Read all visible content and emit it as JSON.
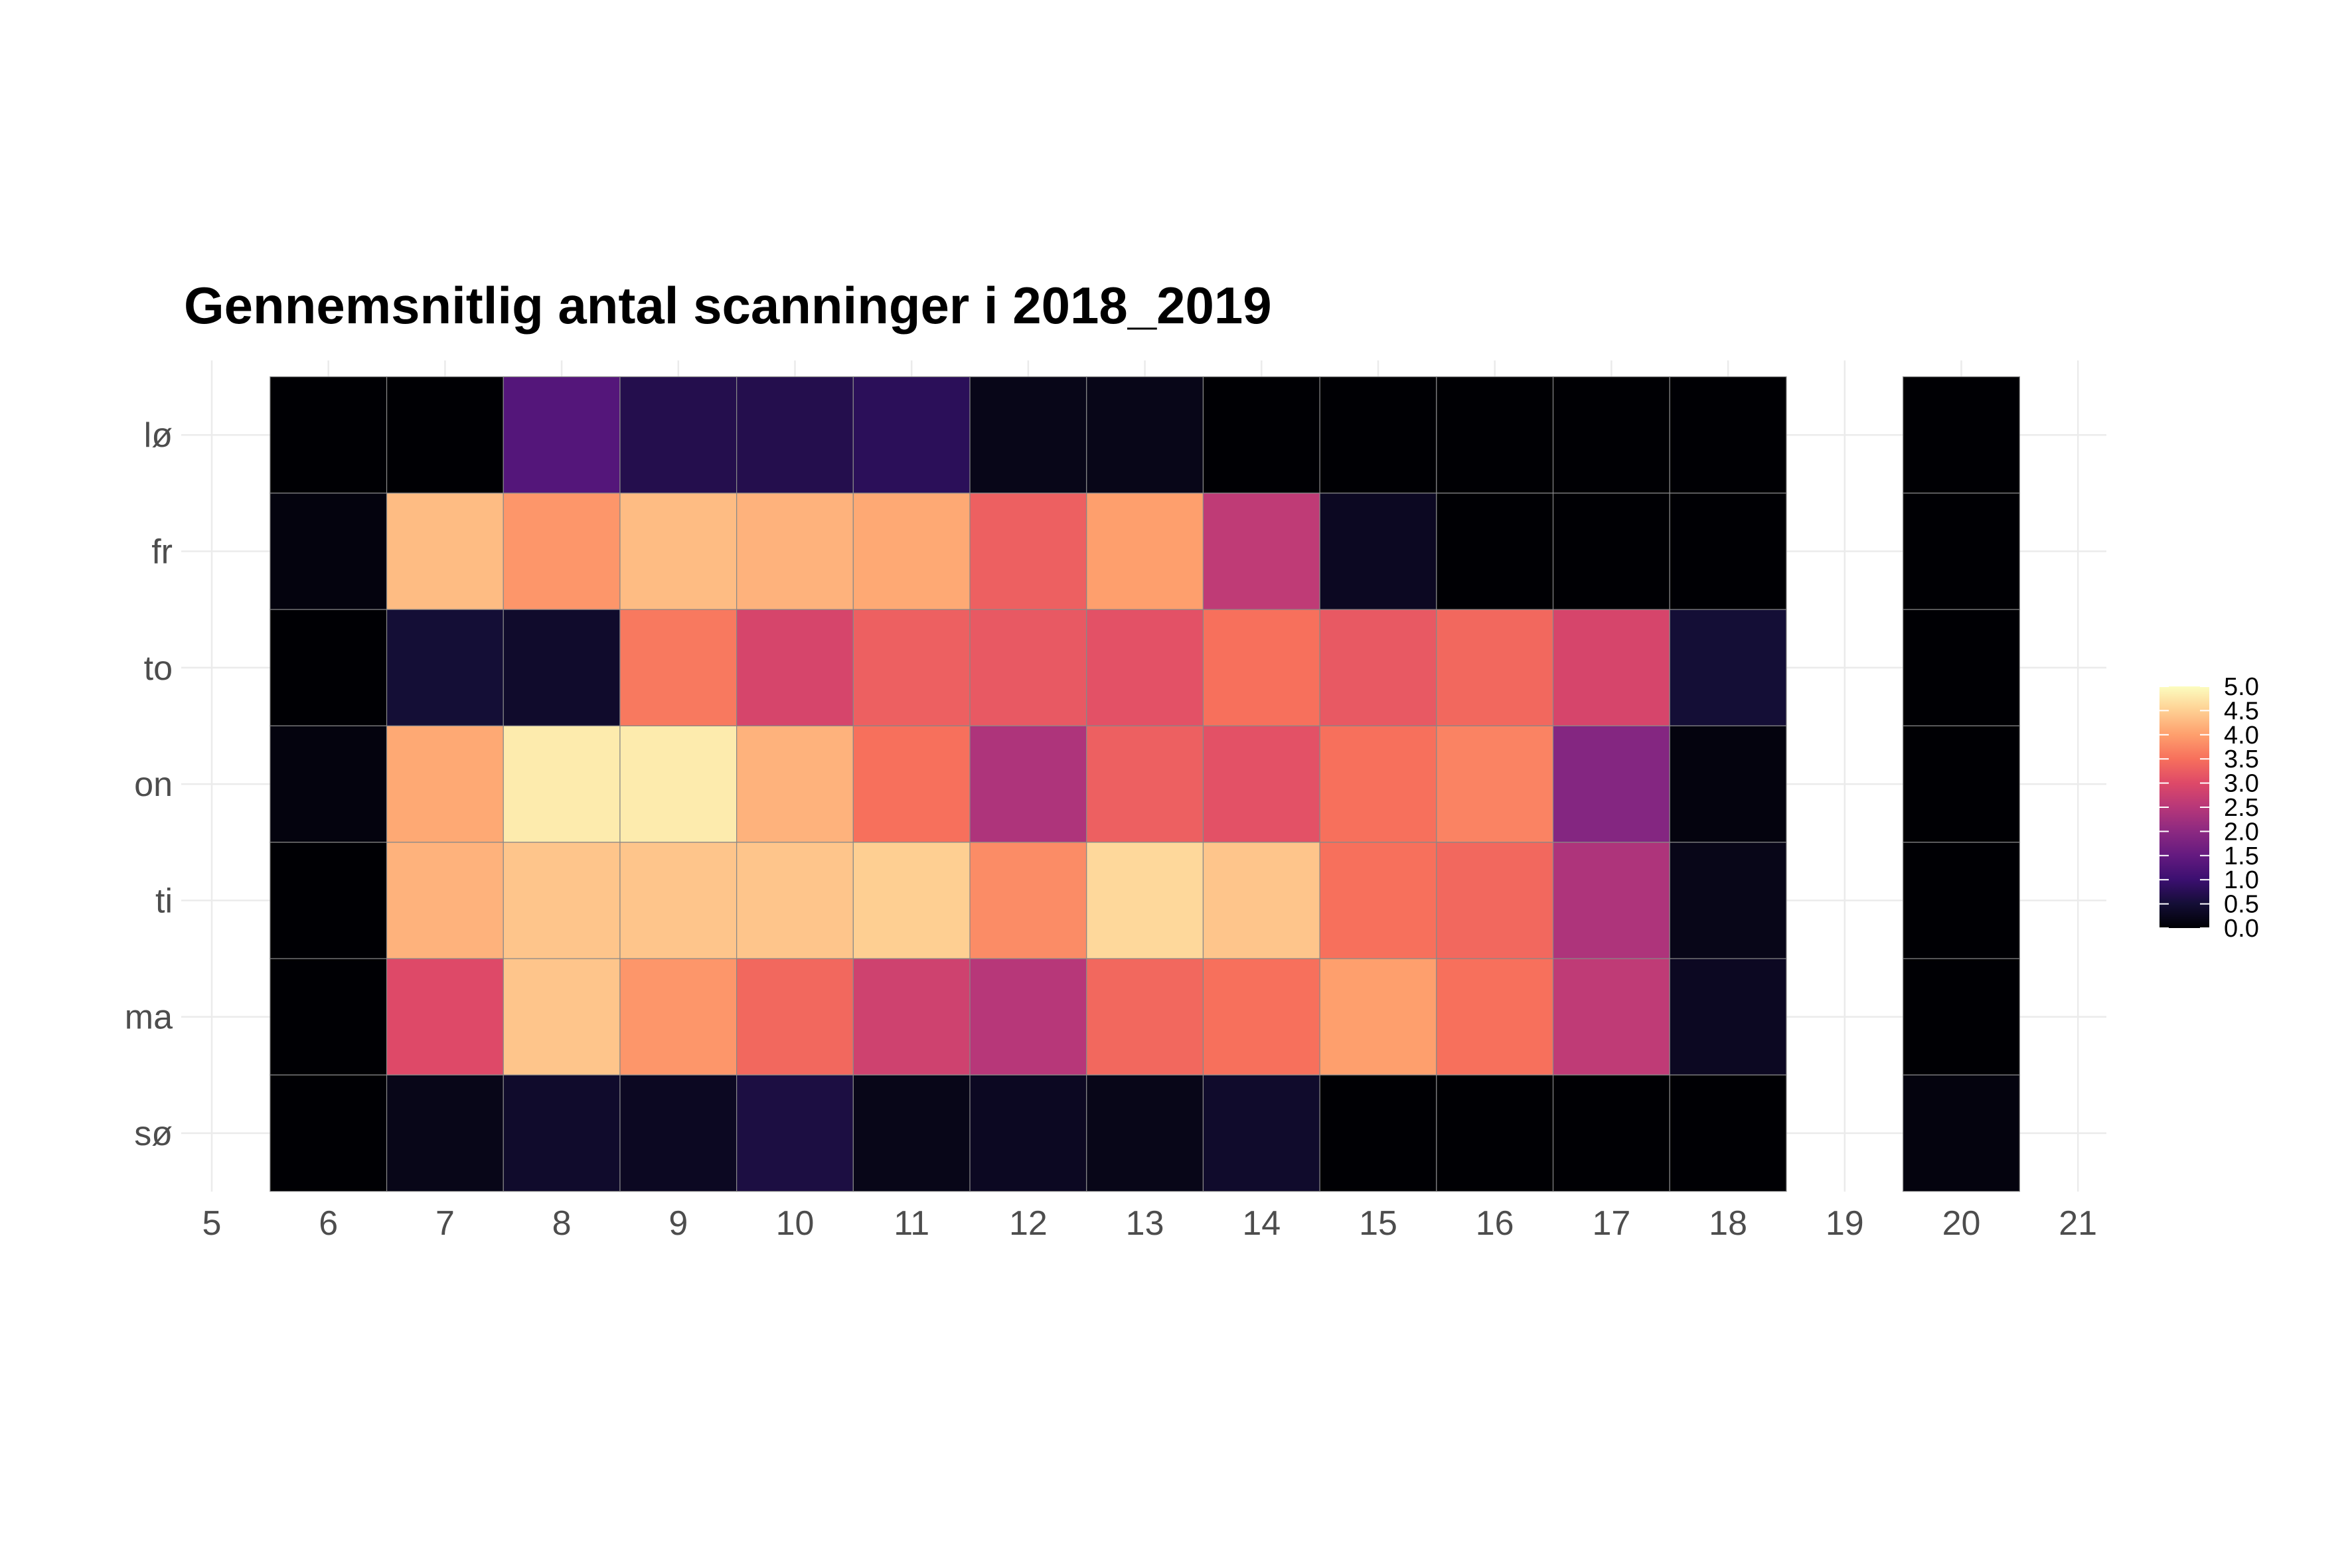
{
  "chart_data": {
    "type": "heatmap",
    "title": "Gennemsnitlig antal scanninger i 2018_2019",
    "xlabel": "",
    "ylabel": "",
    "x_ticks": [
      5,
      6,
      7,
      8,
      9,
      10,
      11,
      12,
      13,
      14,
      15,
      16,
      17,
      18,
      19,
      20,
      21
    ],
    "xlim": [
      5,
      21
    ],
    "y_categories": [
      "sø",
      "ma",
      "ti",
      "on",
      "to",
      "fr",
      "lø"
    ],
    "x": [
      6,
      7,
      8,
      9,
      10,
      11,
      12,
      13,
      14,
      15,
      16,
      17,
      18,
      20
    ],
    "rows": [
      {
        "day": "lø",
        "values": [
          0.0,
          0.0,
          1.3,
          0.7,
          0.7,
          0.8,
          0.2,
          0.2,
          0.0,
          0.0,
          0.0,
          0.0,
          0.0,
          0.0
        ]
      },
      {
        "day": "fr",
        "values": [
          0.1,
          4.3,
          3.9,
          4.3,
          4.2,
          4.1,
          3.3,
          4.0,
          2.6,
          0.3,
          0.0,
          0.0,
          0.0,
          0.0
        ]
      },
      {
        "day": "to",
        "values": [
          0.0,
          0.5,
          0.4,
          3.6,
          2.9,
          3.3,
          3.2,
          3.1,
          3.5,
          3.2,
          3.4,
          2.9,
          0.5,
          0.0
        ]
      },
      {
        "day": "on",
        "values": [
          0.1,
          4.1,
          4.8,
          4.8,
          4.2,
          3.5,
          2.4,
          3.3,
          3.1,
          3.5,
          3.7,
          1.9,
          0.1,
          0.0
        ]
      },
      {
        "day": "ti",
        "values": [
          0.0,
          4.2,
          4.4,
          4.4,
          4.4,
          4.5,
          3.8,
          4.6,
          4.4,
          3.5,
          3.4,
          2.4,
          0.2,
          0.0
        ]
      },
      {
        "day": "ma",
        "values": [
          0.0,
          3.0,
          4.4,
          3.9,
          3.4,
          2.8,
          2.5,
          3.4,
          3.5,
          4.0,
          3.5,
          2.6,
          0.3,
          0.0
        ]
      },
      {
        "day": "sø",
        "values": [
          0.0,
          0.2,
          0.4,
          0.3,
          0.6,
          0.2,
          0.3,
          0.2,
          0.4,
          0.0,
          0.0,
          0.0,
          0.0,
          0.1
        ]
      }
    ],
    "colormap": "magma",
    "scale_range": [
      0.0,
      5.0
    ],
    "legend": {
      "position": "right",
      "labels": [
        "5.0",
        "4.5",
        "4.0",
        "3.5",
        "3.0",
        "2.5",
        "2.0",
        "1.5",
        "1.0",
        "0.5",
        "0.0"
      ]
    },
    "grid": true
  }
}
